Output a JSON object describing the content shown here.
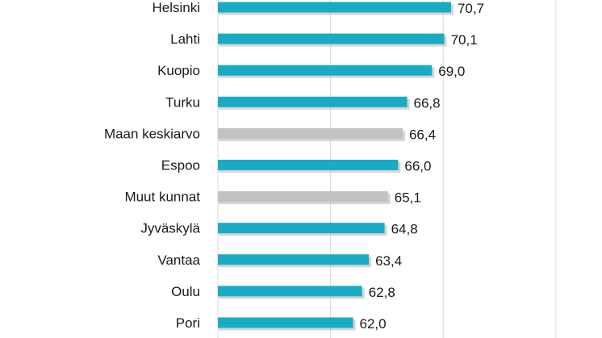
{
  "chart_data": {
    "type": "bar",
    "orientation": "horizontal",
    "categories": [
      "Helsinki",
      "Lahti",
      "Kuopio",
      "Turku",
      "Maan keskiarvo",
      "Espoo",
      "Muut kunnat",
      "Jyväskylä",
      "Vantaa",
      "Oulu",
      "Pori"
    ],
    "values": [
      70.7,
      70.1,
      69.0,
      66.8,
      66.4,
      66.0,
      65.1,
      64.8,
      63.4,
      62.8,
      62.0
    ],
    "data_labels": [
      "70,7",
      "70,1",
      "69,0",
      "66,8",
      "66,4",
      "66,0",
      "65,1",
      "64,8",
      "63,4",
      "62,8",
      "62,0"
    ],
    "highlight_categories": [
      "Maan keskiarvo",
      "Muut kunnat"
    ],
    "colors": {
      "bar": "#1aabc4",
      "highlight": "#c2c2c2",
      "shadow": "#b3b3b3",
      "grid": "#d9d9d9",
      "text": "#1a1a1a"
    },
    "xlim": [
      50,
      90
    ],
    "grid": true,
    "legend": "none"
  }
}
